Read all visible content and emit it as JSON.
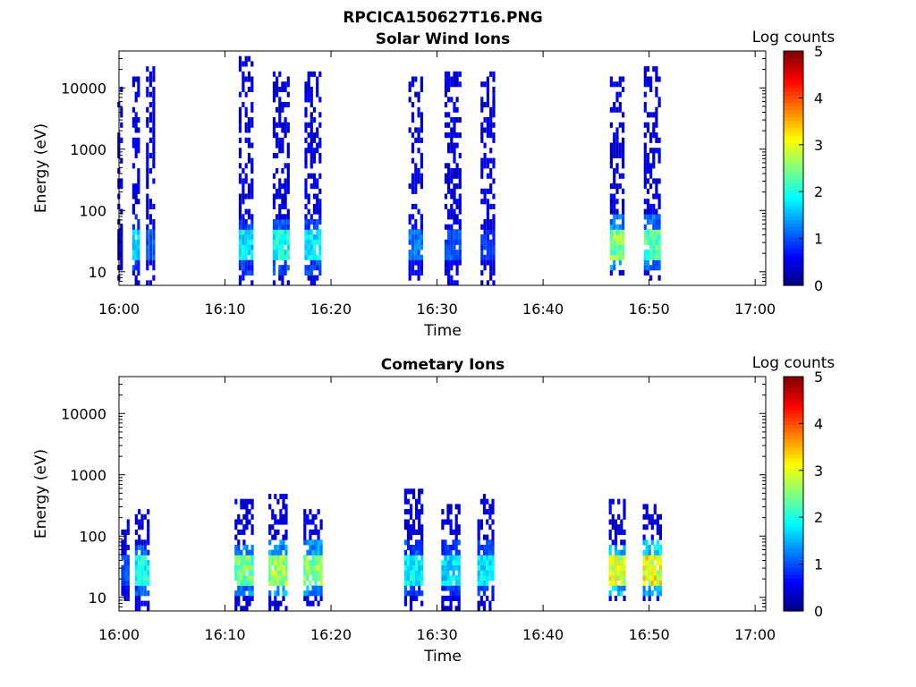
{
  "figure_title": "RPCICA150627T16.PNG",
  "chart_data": [
    {
      "type": "heatmap",
      "title": "Solar Wind Ions",
      "xlabel": "Time",
      "ylabel": "Energy (eV)",
      "x_ticks": [
        "16:00",
        "16:10",
        "16:20",
        "16:30",
        "16:40",
        "16:50",
        "17:00"
      ],
      "x_range_minutes": [
        0,
        61
      ],
      "y_ticks": [
        "10",
        "100",
        "1000",
        "10000"
      ],
      "y_scale": "log",
      "y_range": [
        6,
        40000
      ],
      "colorbar_label": "Log counts",
      "colorbar_ticks": [
        "0",
        "1",
        "2",
        "3",
        "4",
        "5"
      ],
      "colorbar_range": [
        0,
        5
      ],
      "colormap": "jet",
      "bursts": [
        {
          "time_min": 0.1,
          "width_min": 0.5,
          "emin": 8,
          "emax": 9000,
          "low_e": 28,
          "low_e_level": 0.6,
          "density": 0.35
        },
        {
          "time_min": 1.6,
          "width_min": 0.7,
          "emin": 6,
          "emax": 14000,
          "low_e": 30,
          "low_e_level": 2.0,
          "density": 0.5
        },
        {
          "time_min": 3.0,
          "width_min": 0.9,
          "emin": 6,
          "emax": 22000,
          "low_e": 28,
          "low_e_level": 1.2,
          "density": 0.6
        },
        {
          "time_min": 12.0,
          "width_min": 1.4,
          "emin": 7,
          "emax": 30000,
          "low_e": 26,
          "low_e_level": 2.0,
          "density": 0.5
        },
        {
          "time_min": 15.3,
          "width_min": 1.6,
          "emin": 7,
          "emax": 16000,
          "low_e": 26,
          "low_e_level": 2.3,
          "density": 0.55
        },
        {
          "time_min": 18.3,
          "width_min": 1.6,
          "emin": 7,
          "emax": 16000,
          "low_e": 26,
          "low_e_level": 2.1,
          "density": 0.55
        },
        {
          "time_min": 28.0,
          "width_min": 1.4,
          "emin": 6,
          "emax": 15000,
          "low_e": 26,
          "low_e_level": 1.4,
          "density": 0.5
        },
        {
          "time_min": 31.5,
          "width_min": 1.6,
          "emin": 6,
          "emax": 16000,
          "low_e": 26,
          "low_e_level": 1.2,
          "density": 0.55
        },
        {
          "time_min": 34.8,
          "width_min": 1.4,
          "emin": 7,
          "emax": 16000,
          "low_e": 28,
          "low_e_level": 1.0,
          "density": 0.5
        },
        {
          "time_min": 47.0,
          "width_min": 1.4,
          "emin": 10,
          "emax": 15000,
          "low_e": 30,
          "low_e_level": 2.9,
          "density": 0.5
        },
        {
          "time_min": 50.3,
          "width_min": 1.6,
          "emin": 8,
          "emax": 22000,
          "low_e": 30,
          "low_e_level": 2.6,
          "density": 0.55
        }
      ]
    },
    {
      "type": "heatmap",
      "title": "Cometary Ions",
      "xlabel": "Time",
      "ylabel": "Energy (eV)",
      "x_ticks": [
        "16:00",
        "16:10",
        "16:20",
        "16:30",
        "16:40",
        "16:50",
        "17:00"
      ],
      "x_range_minutes": [
        0,
        61
      ],
      "y_ticks": [
        "10",
        "100",
        "1000",
        "10000"
      ],
      "y_scale": "log",
      "y_range": [
        6,
        40000
      ],
      "colorbar_label": "Log counts",
      "colorbar_ticks": [
        "0",
        "1",
        "2",
        "3",
        "4",
        "5"
      ],
      "colorbar_range": [
        0,
        5
      ],
      "colormap": "jet",
      "bursts": [
        {
          "time_min": 0.6,
          "width_min": 0.8,
          "emin": 8,
          "emax": 220,
          "low_e": 30,
          "low_e_level": 1.2,
          "density": 0.4
        },
        {
          "time_min": 2.2,
          "width_min": 1.4,
          "emin": 6,
          "emax": 250,
          "low_e": 28,
          "low_e_level": 2.3,
          "density": 0.5
        },
        {
          "time_min": 11.8,
          "width_min": 1.8,
          "emin": 7,
          "emax": 400,
          "low_e": 28,
          "low_e_level": 2.8,
          "density": 0.55
        },
        {
          "time_min": 15.0,
          "width_min": 1.8,
          "emin": 7,
          "emax": 450,
          "low_e": 30,
          "low_e_level": 3.1,
          "density": 0.55
        },
        {
          "time_min": 18.3,
          "width_min": 1.8,
          "emin": 8,
          "emax": 250,
          "low_e": 30,
          "low_e_level": 3.0,
          "density": 0.5
        },
        {
          "time_min": 27.8,
          "width_min": 1.8,
          "emin": 7,
          "emax": 500,
          "low_e": 30,
          "low_e_level": 2.2,
          "density": 0.55
        },
        {
          "time_min": 31.3,
          "width_min": 1.8,
          "emin": 6,
          "emax": 300,
          "low_e": 30,
          "low_e_level": 2.0,
          "density": 0.55
        },
        {
          "time_min": 34.6,
          "width_min": 1.6,
          "emin": 6,
          "emax": 450,
          "low_e": 30,
          "low_e_level": 2.1,
          "density": 0.5
        },
        {
          "time_min": 47.0,
          "width_min": 1.6,
          "emin": 9,
          "emax": 350,
          "low_e": 28,
          "low_e_level": 3.4,
          "density": 0.5
        },
        {
          "time_min": 50.3,
          "width_min": 1.8,
          "emin": 9,
          "emax": 320,
          "low_e": 30,
          "low_e_level": 3.6,
          "density": 0.5
        }
      ]
    }
  ]
}
